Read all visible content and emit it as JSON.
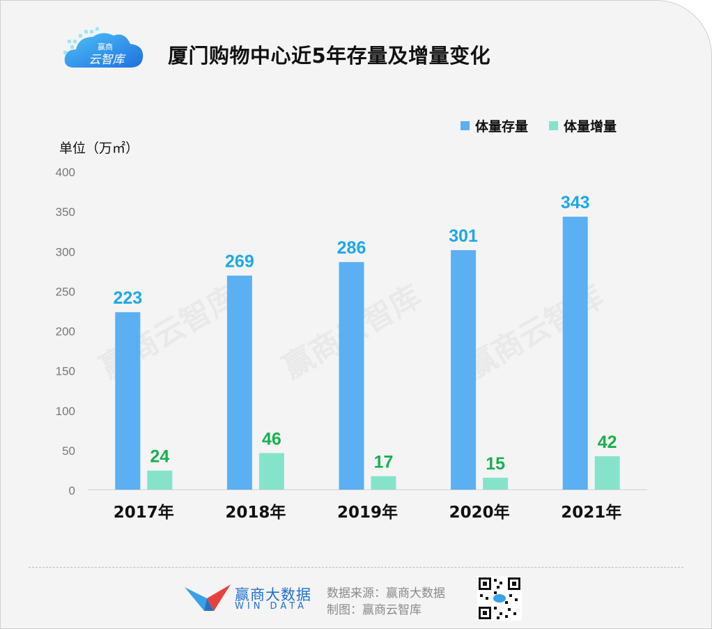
{
  "header": {
    "logo_text": "赢商云智库",
    "title": "厦门购物中心近5年存量及增量变化"
  },
  "watermark": "赢商云智库",
  "colors": {
    "stock": "#5ab0f2",
    "increment": "#86e3cb",
    "stock_label": "#1da7e8",
    "increment_label": "#18b04f"
  },
  "chart_data": {
    "type": "bar",
    "title": "厦门购物中心近5年存量及增量变化",
    "ylabel": "单位（万㎡）",
    "xlabel": "",
    "ylim": [
      0,
      400
    ],
    "yticks": [
      "0",
      "50",
      "100",
      "150",
      "200",
      "250",
      "300",
      "350",
      "400"
    ],
    "categories": [
      "2017年",
      "2018年",
      "2019年",
      "2020年",
      "2021年"
    ],
    "legend_position": "top-right",
    "grid": false,
    "series": [
      {
        "name": "体量存量",
        "values": [
          223,
          269,
          286,
          301,
          343
        ]
      },
      {
        "name": "体量增量",
        "values": [
          24,
          46,
          17,
          15,
          42
        ]
      }
    ]
  },
  "footer": {
    "brand_name": "赢商大数据",
    "brand_sub": "WIN DATA",
    "source": "数据来源：赢商大数据",
    "maker": "制图：赢商云智库"
  }
}
